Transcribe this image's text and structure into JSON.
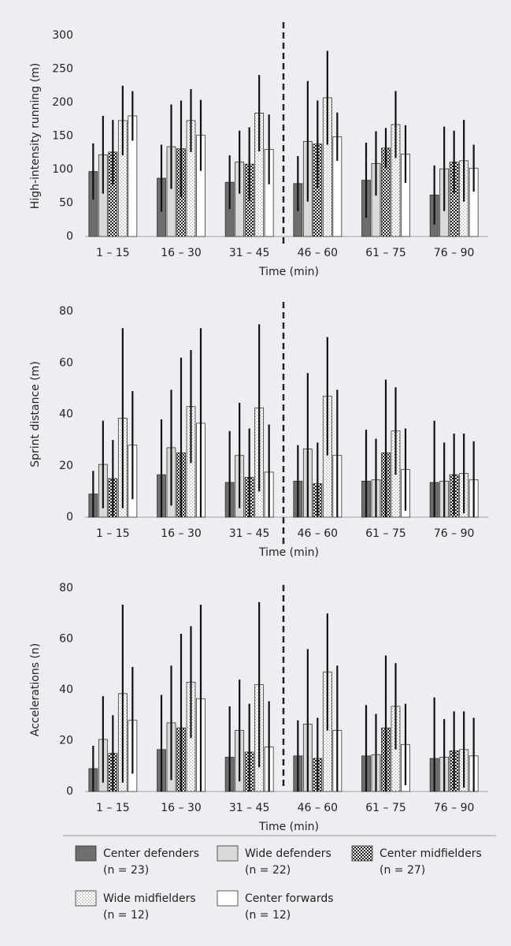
{
  "chart_data": [
    {
      "type": "bar",
      "ylabel": "High-intensity running (m)",
      "xlabel": "Time (min)",
      "categories": [
        "1 – 15",
        "16 – 30",
        "31 – 45",
        "46 – 60",
        "61 – 75",
        "76 – 90"
      ],
      "ylim": [
        0,
        300
      ],
      "yticks": [
        0,
        50,
        100,
        150,
        200,
        250,
        300
      ],
      "divider_after": 2,
      "series": [
        {
          "values": [
            97,
            87,
            81,
            79,
            84,
            62
          ],
          "errors": [
            42,
            50,
            40,
            41,
            56,
            44
          ]
        },
        {
          "values": [
            122,
            134,
            111,
            142,
            109,
            101
          ],
          "errors": [
            58,
            63,
            47,
            90,
            48,
            63
          ]
        },
        {
          "values": [
            126,
            131,
            108,
            138,
            132,
            111
          ],
          "errors": [
            48,
            72,
            55,
            65,
            30,
            47
          ]
        },
        {
          "values": [
            173,
            173,
            184,
            207,
            167,
            113
          ],
          "errors": [
            52,
            47,
            57,
            70,
            50,
            61
          ]
        },
        {
          "values": [
            180,
            151,
            130,
            149,
            123,
            102
          ],
          "errors": [
            37,
            53,
            52,
            36,
            43,
            35
          ]
        }
      ]
    },
    {
      "type": "bar",
      "ylabel": "Sprint distance (m)",
      "xlabel": "Time (min)",
      "categories": [
        "1 – 15",
        "16 – 30",
        "31 – 45",
        "46 – 60",
        "61 – 75",
        "76 – 90"
      ],
      "ylim": [
        0,
        80
      ],
      "yticks": [
        0,
        20,
        40,
        60,
        80
      ],
      "divider_after": 2,
      "series": [
        {
          "values": [
            9,
            16.5,
            13.5,
            14,
            14,
            13.5
          ],
          "errors": [
            9,
            21.5,
            20,
            14,
            20,
            24
          ]
        },
        {
          "values": [
            20.5,
            27,
            24,
            26.5,
            14.5,
            14
          ],
          "errors": [
            17,
            22.5,
            20.5,
            29.5,
            16,
            15
          ]
        },
        {
          "values": [
            15,
            25,
            15.5,
            13,
            25,
            16.5
          ],
          "errors": [
            15,
            37,
            19,
            16,
            28.5,
            16
          ]
        },
        {
          "values": [
            38.5,
            43,
            42.5,
            47,
            33.5,
            17
          ],
          "errors": [
            35,
            22,
            32.5,
            23,
            17,
            15.5
          ]
        },
        {
          "values": [
            28,
            36.5,
            17.5,
            24,
            18.5,
            14.5
          ],
          "errors": [
            21,
            37,
            18.5,
            25.5,
            16,
            15
          ]
        }
      ]
    },
    {
      "type": "bar",
      "ylabel": "Accelerations (n)",
      "xlabel": "Time (min)",
      "categories": [
        "1 – 15",
        "16 – 30",
        "31 – 45",
        "46 – 60",
        "61 – 75",
        "76 – 90"
      ],
      "ylim": [
        0,
        80
      ],
      "yticks": [
        0,
        20,
        40,
        60,
        80
      ],
      "divider_after": 2,
      "series": [
        {
          "values": [
            9,
            16.5,
            13.5,
            14,
            14,
            13
          ],
          "errors": [
            9,
            21.5,
            20,
            14,
            20,
            24
          ]
        },
        {
          "values": [
            20.5,
            27,
            24,
            26.5,
            14.5,
            13.5
          ],
          "errors": [
            17,
            22.5,
            20,
            29.5,
            16,
            15
          ]
        },
        {
          "values": [
            15,
            25,
            15.5,
            13,
            25,
            16
          ],
          "errors": [
            15,
            37,
            19,
            16,
            28.5,
            15.5
          ]
        },
        {
          "values": [
            38.5,
            43,
            42,
            47,
            33.5,
            16.5
          ],
          "errors": [
            35,
            22,
            32.5,
            23,
            17,
            15
          ]
        },
        {
          "values": [
            28,
            36.5,
            17.5,
            24,
            18.5,
            14
          ],
          "errors": [
            21,
            37,
            18,
            25.5,
            16,
            15
          ]
        }
      ]
    }
  ],
  "legend": {
    "items": [
      {
        "name": "Center defenders",
        "note": "(n = 23)",
        "color": "#6e6e6e",
        "pattern": "solid"
      },
      {
        "name": "Wide defenders",
        "note": "(n = 22)",
        "color": "#d9d9d9",
        "pattern": "solid"
      },
      {
        "name": "Center midfielders",
        "note": "(n = 27)",
        "color": "#222222",
        "pattern": "checker"
      },
      {
        "name": "Wide midfielders",
        "note": "(n = 12)",
        "color": "#9a9a9a",
        "pattern": "dots"
      },
      {
        "name": "Center forwards",
        "note": "(n = 12)",
        "color": "#ffffff",
        "pattern": "solid"
      }
    ]
  }
}
